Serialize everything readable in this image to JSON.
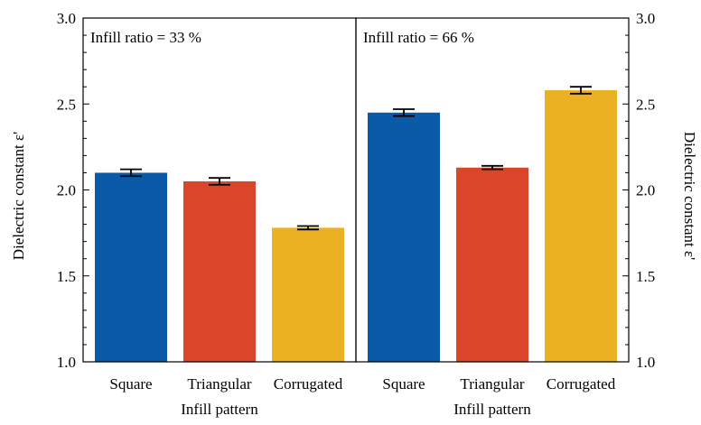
{
  "chart_data": {
    "type": "bar",
    "ylabel_left": "Dielectric constant ε'",
    "ylabel_right": "Dielectric constant ε'",
    "ylim": [
      1.0,
      3.0
    ],
    "yticks_major": [
      "1.0",
      "1.5",
      "2.0",
      "2.5",
      "3.0"
    ],
    "yticks_major_values": [
      1.0,
      1.5,
      2.0,
      2.5,
      3.0
    ],
    "yticks_minor_step": 0.1,
    "colors": [
      "#0a5aa8",
      "#d9462a",
      "#ecb123"
    ],
    "panels": [
      {
        "annotation": "Infill ratio = 33 %",
        "xlabel": "Infill pattern",
        "categories": [
          "Square",
          "Triangular",
          "Corrugated"
        ],
        "values": [
          2.1,
          2.05,
          1.78
        ],
        "errors": [
          0.02,
          0.02,
          0.01
        ]
      },
      {
        "annotation": "Infill ratio = 66 %",
        "xlabel": "Infill pattern",
        "categories": [
          "Square",
          "Triangular",
          "Corrugated"
        ],
        "values": [
          2.45,
          2.13,
          2.58
        ],
        "errors": [
          0.02,
          0.01,
          0.02
        ]
      }
    ]
  }
}
